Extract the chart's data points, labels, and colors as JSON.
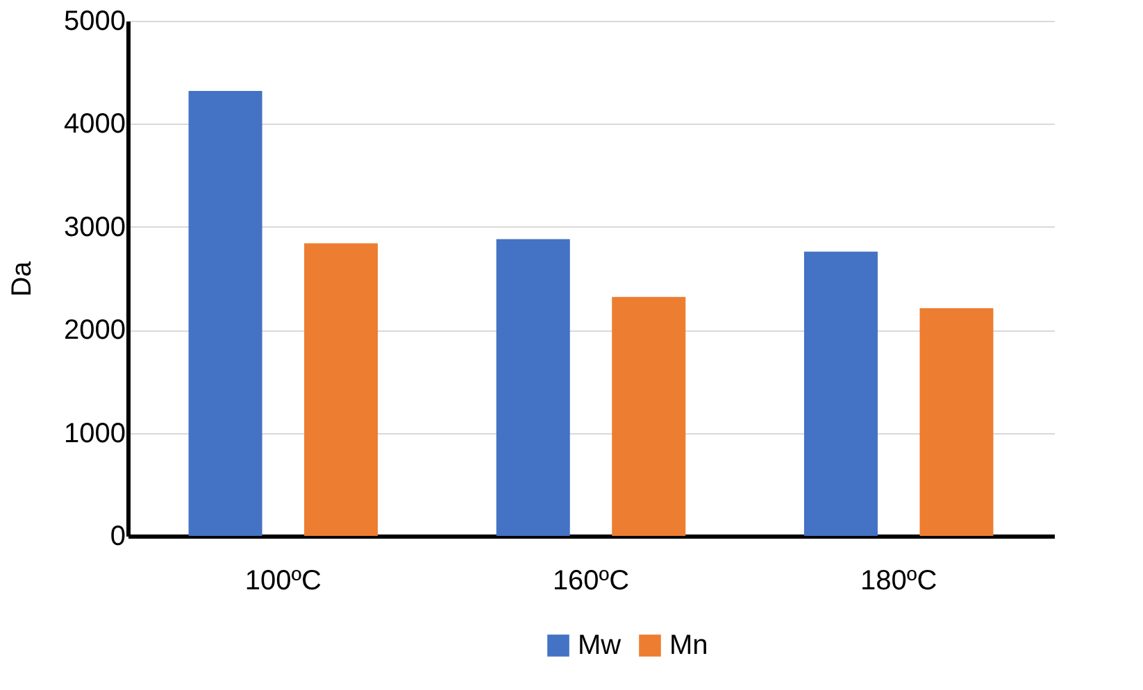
{
  "chart_data": {
    "type": "bar",
    "ylabel": "Da",
    "categories": [
      "100ºC",
      "160ºC",
      "180ºC"
    ],
    "series": [
      {
        "name": "Mw",
        "color": "#4472c4",
        "values": [
          4320,
          2880,
          2760
        ]
      },
      {
        "name": "Mn",
        "color": "#ed7d31",
        "values": [
          2840,
          2320,
          2210
        ]
      }
    ],
    "ylim": [
      0,
      5000
    ],
    "yticks": [
      0,
      1000,
      2000,
      3000,
      4000,
      5000
    ],
    "grid": "y",
    "legend": "bottom"
  }
}
